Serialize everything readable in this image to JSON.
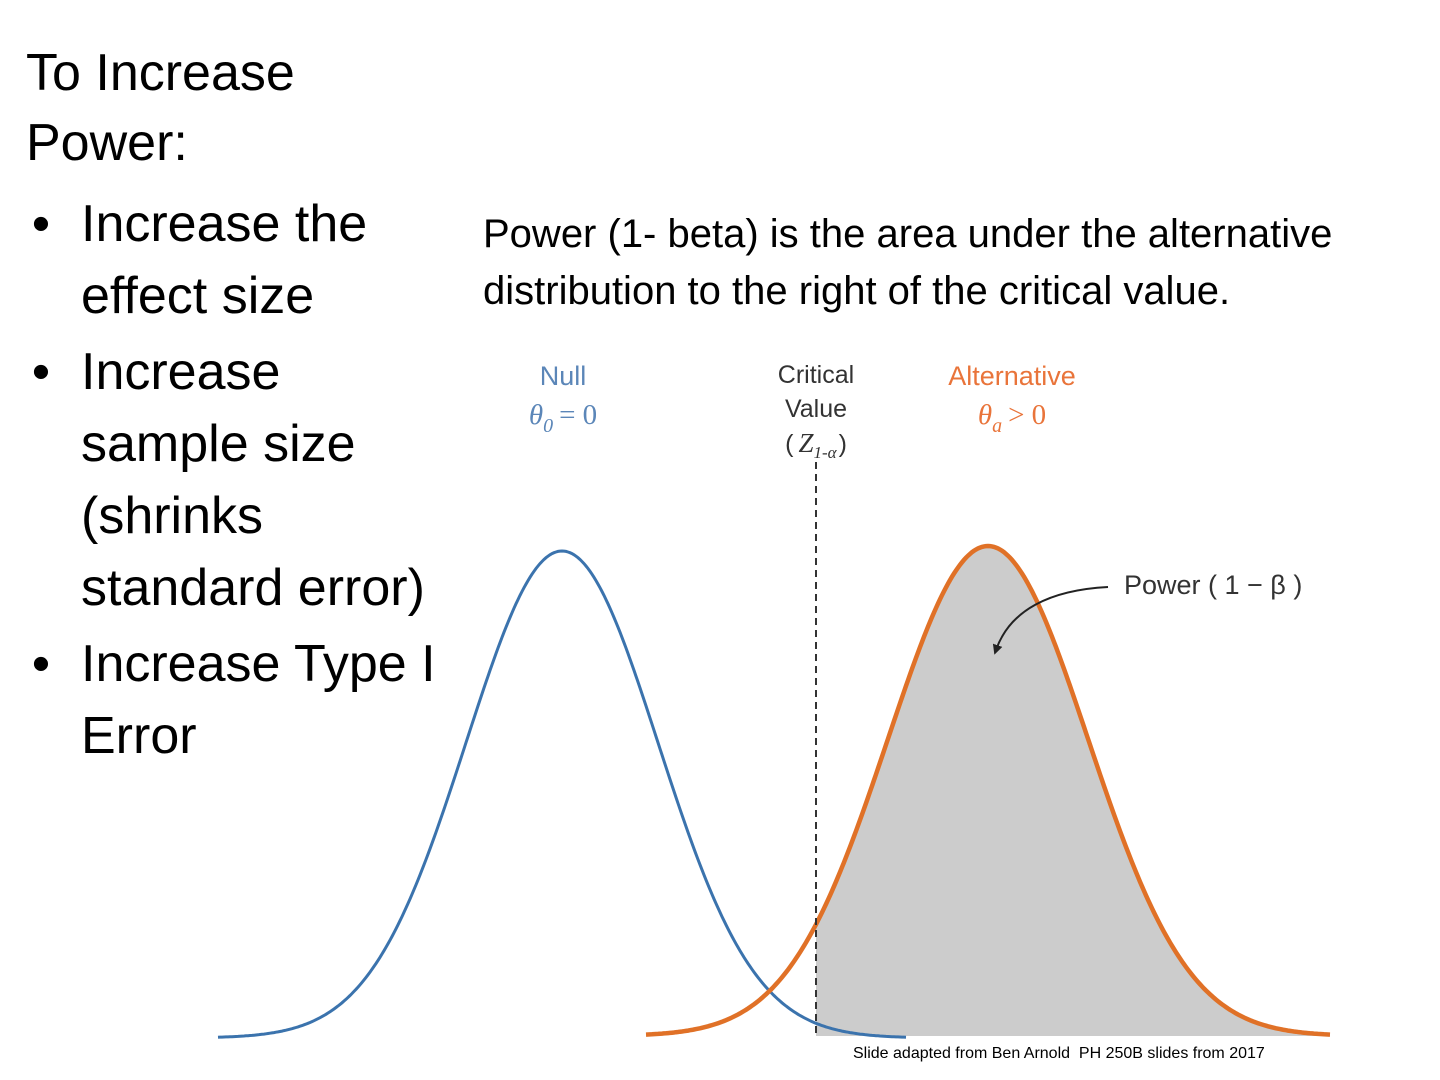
{
  "slide": {
    "heading": "To Increase Power:",
    "bullets": [
      "Increase the effect size",
      "Increase sample size (shrinks standard error)",
      "Increase Type I Error"
    ],
    "bullet_symbol": "•",
    "description": "Power (1- beta) is the area under the alternative distribution to the right of the critical value.",
    "credit": "Slide adapted from Ben Arnold  PH 250B slides from 2017"
  },
  "diagram": {
    "null_label": "Null",
    "null_param": "θ0 = 0",
    "null_param_parts": {
      "symbol": "θ",
      "subscript": "0",
      "relation": "= 0"
    },
    "critical_label_line1": "Critical",
    "critical_label_line2": "Value",
    "critical_param": "( Z1-α )",
    "critical_param_parts": {
      "open": "(",
      "symbol": "Z",
      "subscript": "1-α",
      "close": ")"
    },
    "alternative_label": "Alternative",
    "alternative_param": "θa > 0",
    "alternative_param_parts": {
      "symbol": "θ",
      "subscript": "a",
      "relation": "> 0"
    },
    "power_label": "Power ( 1 − β )",
    "colors": {
      "null_curve": "#3b73ad",
      "alternative_curve": "#e07127",
      "power_area": "#cccccc",
      "critical_line": "#333333",
      "null_text": "#5b86b8",
      "alternative_text": "#e9743a",
      "label_text": "#333333"
    }
  }
}
